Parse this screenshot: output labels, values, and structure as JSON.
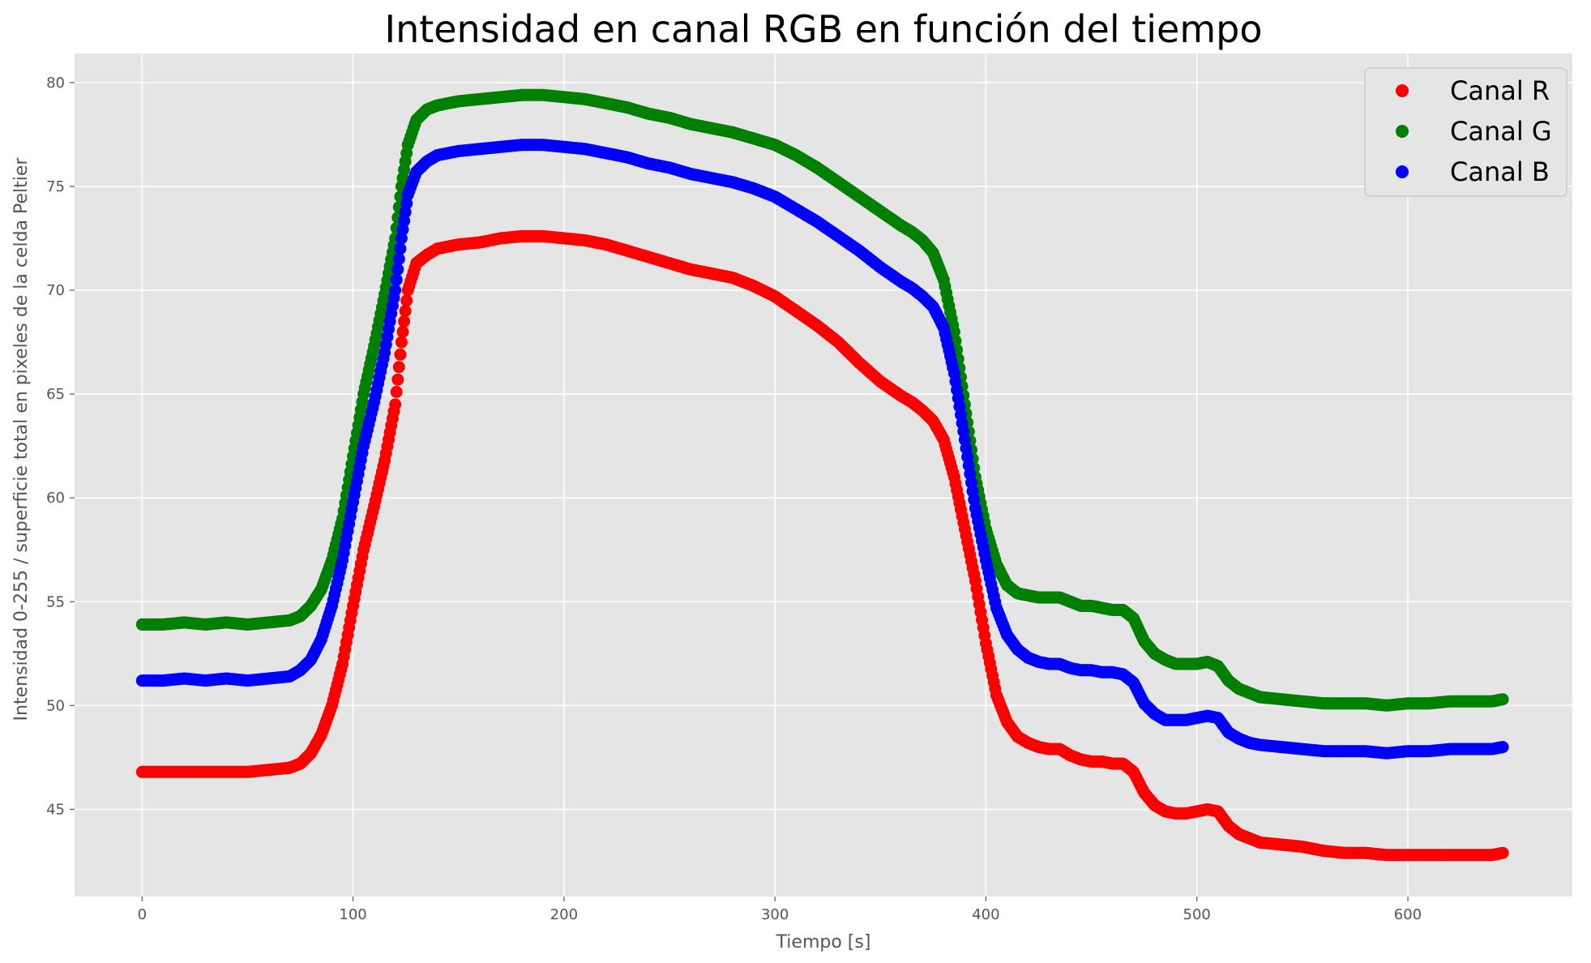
{
  "chart_data": {
    "type": "scatter",
    "title": "Intensidad en canal RGB en función del tiempo",
    "xlabel": "Tiempo [s]",
    "ylabel": "Intensidad 0-255 / superficie total en pixeles de la celda Peltier",
    "xlim": [
      -32,
      678
    ],
    "ylim": [
      40.8,
      81.4
    ],
    "xticks": [
      0,
      100,
      200,
      300,
      400,
      500,
      600
    ],
    "yticks": [
      45,
      50,
      55,
      60,
      65,
      70,
      75,
      80
    ],
    "grid": true,
    "legend_position": "top-right",
    "background": "#e5e5e5",
    "series": [
      {
        "name": "Canal R",
        "color": "#ff0000",
        "points": [
          [
            0,
            46.8
          ],
          [
            10,
            46.8
          ],
          [
            20,
            46.8
          ],
          [
            30,
            46.8
          ],
          [
            40,
            46.8
          ],
          [
            50,
            46.8
          ],
          [
            60,
            46.9
          ],
          [
            70,
            47.0
          ],
          [
            75,
            47.2
          ],
          [
            80,
            47.7
          ],
          [
            85,
            48.6
          ],
          [
            90,
            50.0
          ],
          [
            95,
            52.0
          ],
          [
            100,
            54.8
          ],
          [
            105,
            57.5
          ],
          [
            110,
            59.6
          ],
          [
            115,
            61.8
          ],
          [
            120,
            64.5
          ],
          [
            123,
            67.5
          ],
          [
            126,
            70.0
          ],
          [
            130,
            71.3
          ],
          [
            135,
            71.7
          ],
          [
            140,
            72.0
          ],
          [
            150,
            72.2
          ],
          [
            160,
            72.3
          ],
          [
            170,
            72.5
          ],
          [
            180,
            72.6
          ],
          [
            190,
            72.6
          ],
          [
            200,
            72.5
          ],
          [
            210,
            72.4
          ],
          [
            220,
            72.2
          ],
          [
            230,
            71.9
          ],
          [
            240,
            71.6
          ],
          [
            250,
            71.3
          ],
          [
            260,
            71.0
          ],
          [
            270,
            70.8
          ],
          [
            280,
            70.6
          ],
          [
            290,
            70.2
          ],
          [
            300,
            69.7
          ],
          [
            310,
            69.0
          ],
          [
            320,
            68.3
          ],
          [
            330,
            67.5
          ],
          [
            340,
            66.5
          ],
          [
            350,
            65.6
          ],
          [
            360,
            64.9
          ],
          [
            365,
            64.6
          ],
          [
            370,
            64.2
          ],
          [
            375,
            63.7
          ],
          [
            380,
            62.8
          ],
          [
            385,
            61.0
          ],
          [
            390,
            58.5
          ],
          [
            395,
            56.0
          ],
          [
            400,
            53.0
          ],
          [
            405,
            50.5
          ],
          [
            410,
            49.2
          ],
          [
            415,
            48.5
          ],
          [
            420,
            48.2
          ],
          [
            425,
            48.0
          ],
          [
            430,
            47.9
          ],
          [
            435,
            47.9
          ],
          [
            440,
            47.6
          ],
          [
            445,
            47.4
          ],
          [
            450,
            47.3
          ],
          [
            455,
            47.3
          ],
          [
            460,
            47.2
          ],
          [
            465,
            47.2
          ],
          [
            470,
            46.8
          ],
          [
            475,
            45.8
          ],
          [
            480,
            45.2
          ],
          [
            485,
            44.9
          ],
          [
            490,
            44.8
          ],
          [
            495,
            44.8
          ],
          [
            500,
            44.9
          ],
          [
            505,
            45.0
          ],
          [
            510,
            44.9
          ],
          [
            515,
            44.2
          ],
          [
            520,
            43.8
          ],
          [
            525,
            43.6
          ],
          [
            530,
            43.4
          ],
          [
            540,
            43.3
          ],
          [
            550,
            43.2
          ],
          [
            560,
            43.0
          ],
          [
            570,
            42.9
          ],
          [
            580,
            42.9
          ],
          [
            590,
            42.8
          ],
          [
            600,
            42.8
          ],
          [
            610,
            42.8
          ],
          [
            620,
            42.8
          ],
          [
            630,
            42.8
          ],
          [
            640,
            42.8
          ],
          [
            645,
            42.9
          ]
        ]
      },
      {
        "name": "Canal G",
        "color": "#008000",
        "points": [
          [
            0,
            53.9
          ],
          [
            10,
            53.9
          ],
          [
            20,
            54.0
          ],
          [
            30,
            53.9
          ],
          [
            40,
            54.0
          ],
          [
            50,
            53.9
          ],
          [
            60,
            54.0
          ],
          [
            70,
            54.1
          ],
          [
            75,
            54.3
          ],
          [
            80,
            54.8
          ],
          [
            85,
            55.6
          ],
          [
            90,
            57.0
          ],
          [
            95,
            59.0
          ],
          [
            100,
            62.0
          ],
          [
            105,
            65.0
          ],
          [
            110,
            67.3
          ],
          [
            115,
            69.8
          ],
          [
            120,
            72.5
          ],
          [
            123,
            75.0
          ],
          [
            126,
            77.0
          ],
          [
            130,
            78.2
          ],
          [
            135,
            78.7
          ],
          [
            140,
            78.9
          ],
          [
            150,
            79.1
          ],
          [
            160,
            79.2
          ],
          [
            170,
            79.3
          ],
          [
            180,
            79.4
          ],
          [
            190,
            79.4
          ],
          [
            200,
            79.3
          ],
          [
            210,
            79.2
          ],
          [
            220,
            79.0
          ],
          [
            230,
            78.8
          ],
          [
            240,
            78.5
          ],
          [
            250,
            78.3
          ],
          [
            260,
            78.0
          ],
          [
            270,
            77.8
          ],
          [
            280,
            77.6
          ],
          [
            290,
            77.3
          ],
          [
            300,
            77.0
          ],
          [
            310,
            76.5
          ],
          [
            320,
            75.9
          ],
          [
            330,
            75.2
          ],
          [
            340,
            74.5
          ],
          [
            350,
            73.8
          ],
          [
            360,
            73.1
          ],
          [
            365,
            72.8
          ],
          [
            370,
            72.4
          ],
          [
            375,
            71.8
          ],
          [
            380,
            70.5
          ],
          [
            385,
            68.0
          ],
          [
            390,
            64.5
          ],
          [
            395,
            61.0
          ],
          [
            400,
            58.5
          ],
          [
            405,
            56.8
          ],
          [
            410,
            55.8
          ],
          [
            415,
            55.4
          ],
          [
            420,
            55.3
          ],
          [
            425,
            55.2
          ],
          [
            430,
            55.2
          ],
          [
            435,
            55.2
          ],
          [
            440,
            55.0
          ],
          [
            445,
            54.8
          ],
          [
            450,
            54.8
          ],
          [
            455,
            54.7
          ],
          [
            460,
            54.6
          ],
          [
            465,
            54.6
          ],
          [
            470,
            54.2
          ],
          [
            475,
            53.1
          ],
          [
            480,
            52.5
          ],
          [
            485,
            52.2
          ],
          [
            490,
            52.0
          ],
          [
            495,
            52.0
          ],
          [
            500,
            52.0
          ],
          [
            505,
            52.1
          ],
          [
            510,
            51.9
          ],
          [
            515,
            51.2
          ],
          [
            520,
            50.8
          ],
          [
            525,
            50.6
          ],
          [
            530,
            50.4
          ],
          [
            540,
            50.3
          ],
          [
            550,
            50.2
          ],
          [
            560,
            50.1
          ],
          [
            570,
            50.1
          ],
          [
            580,
            50.1
          ],
          [
            590,
            50.0
          ],
          [
            600,
            50.1
          ],
          [
            610,
            50.1
          ],
          [
            620,
            50.2
          ],
          [
            630,
            50.2
          ],
          [
            640,
            50.2
          ],
          [
            645,
            50.3
          ]
        ]
      },
      {
        "name": "Canal B",
        "color": "#0000ff",
        "points": [
          [
            0,
            51.2
          ],
          [
            10,
            51.2
          ],
          [
            20,
            51.3
          ],
          [
            30,
            51.2
          ],
          [
            40,
            51.3
          ],
          [
            50,
            51.2
          ],
          [
            60,
            51.3
          ],
          [
            70,
            51.4
          ],
          [
            75,
            51.7
          ],
          [
            80,
            52.2
          ],
          [
            85,
            53.2
          ],
          [
            90,
            54.8
          ],
          [
            95,
            57.0
          ],
          [
            100,
            59.8
          ],
          [
            105,
            62.5
          ],
          [
            110,
            64.6
          ],
          [
            115,
            67.0
          ],
          [
            120,
            70.0
          ],
          [
            123,
            72.5
          ],
          [
            126,
            74.6
          ],
          [
            130,
            75.7
          ],
          [
            135,
            76.2
          ],
          [
            140,
            76.5
          ],
          [
            150,
            76.7
          ],
          [
            160,
            76.8
          ],
          [
            170,
            76.9
          ],
          [
            180,
            77.0
          ],
          [
            190,
            77.0
          ],
          [
            200,
            76.9
          ],
          [
            210,
            76.8
          ],
          [
            220,
            76.6
          ],
          [
            230,
            76.4
          ],
          [
            240,
            76.1
          ],
          [
            250,
            75.9
          ],
          [
            260,
            75.6
          ],
          [
            270,
            75.4
          ],
          [
            280,
            75.2
          ],
          [
            290,
            74.9
          ],
          [
            300,
            74.5
          ],
          [
            310,
            73.9
          ],
          [
            320,
            73.3
          ],
          [
            330,
            72.6
          ],
          [
            340,
            71.9
          ],
          [
            350,
            71.1
          ],
          [
            360,
            70.4
          ],
          [
            365,
            70.1
          ],
          [
            370,
            69.7
          ],
          [
            375,
            69.2
          ],
          [
            380,
            68.2
          ],
          [
            385,
            66.0
          ],
          [
            390,
            62.8
          ],
          [
            395,
            59.5
          ],
          [
            400,
            57.0
          ],
          [
            405,
            54.7
          ],
          [
            410,
            53.4
          ],
          [
            415,
            52.7
          ],
          [
            420,
            52.3
          ],
          [
            425,
            52.1
          ],
          [
            430,
            52.0
          ],
          [
            435,
            52.0
          ],
          [
            440,
            51.8
          ],
          [
            445,
            51.7
          ],
          [
            450,
            51.7
          ],
          [
            455,
            51.6
          ],
          [
            460,
            51.6
          ],
          [
            465,
            51.5
          ],
          [
            470,
            51.1
          ],
          [
            475,
            50.1
          ],
          [
            480,
            49.6
          ],
          [
            485,
            49.3
          ],
          [
            490,
            49.3
          ],
          [
            495,
            49.3
          ],
          [
            500,
            49.4
          ],
          [
            505,
            49.5
          ],
          [
            510,
            49.4
          ],
          [
            515,
            48.7
          ],
          [
            520,
            48.4
          ],
          [
            525,
            48.2
          ],
          [
            530,
            48.1
          ],
          [
            540,
            48.0
          ],
          [
            550,
            47.9
          ],
          [
            560,
            47.8
          ],
          [
            570,
            47.8
          ],
          [
            580,
            47.8
          ],
          [
            590,
            47.7
          ],
          [
            600,
            47.8
          ],
          [
            610,
            47.8
          ],
          [
            620,
            47.9
          ],
          [
            630,
            47.9
          ],
          [
            640,
            47.9
          ],
          [
            645,
            48.0
          ]
        ]
      }
    ]
  }
}
